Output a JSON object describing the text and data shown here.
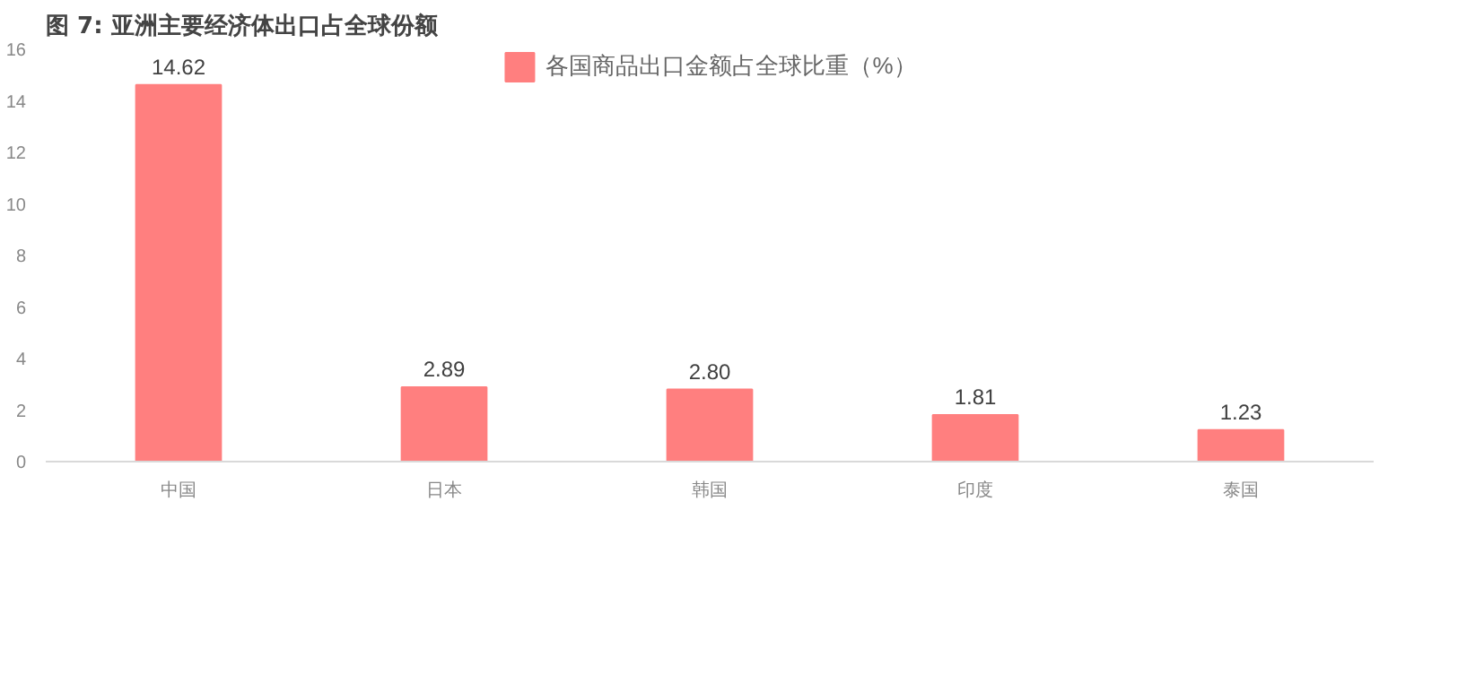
{
  "chart_data": {
    "type": "bar",
    "title": "图 7: 亚洲主要经济体出口占全球份额",
    "categories": [
      "中国",
      "日本",
      "韩国",
      "印度",
      "泰国"
    ],
    "series": [
      {
        "name": "各国商品出口金额占全球比重（%）",
        "color": "#ff7f7f",
        "values": [
          14.62,
          2.89,
          2.8,
          1.81,
          1.23
        ],
        "value_labels": [
          "14.62",
          "2.89",
          "2.80",
          "1.81",
          "1.23"
        ]
      }
    ],
    "ylim": [
      0,
      16
    ],
    "yticks": [
      0,
      2,
      4,
      6,
      8,
      10,
      12,
      14,
      16
    ],
    "grid": false,
    "legend": "top"
  }
}
